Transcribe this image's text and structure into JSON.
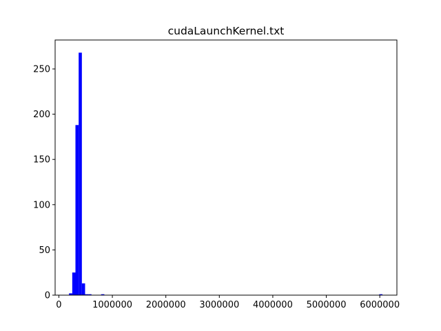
{
  "chart_data": {
    "type": "bar",
    "title": "cudaLaunchKernel.txt",
    "xlabel": "",
    "ylabel": "",
    "xlim": [
      -70000,
      6320000
    ],
    "ylim": [
      0,
      282
    ],
    "x_ticks": [
      {
        "value": 0,
        "label": "0"
      },
      {
        "value": 1000000,
        "label": "1000000"
      },
      {
        "value": 2000000,
        "label": "2000000"
      },
      {
        "value": 3000000,
        "label": "3000000"
      },
      {
        "value": 4000000,
        "label": "4000000"
      },
      {
        "value": 5000000,
        "label": "5000000"
      },
      {
        "value": 6000000,
        "label": "6000000"
      }
    ],
    "y_ticks": [
      {
        "value": 0,
        "label": "0"
      },
      {
        "value": 50,
        "label": "50"
      },
      {
        "value": 100,
        "label": "100"
      },
      {
        "value": 150,
        "label": "150"
      },
      {
        "value": 200,
        "label": "200"
      },
      {
        "value": 250,
        "label": "250"
      }
    ],
    "grid": false,
    "bar_color": "#0000ff",
    "bins": [
      {
        "x0": 190000,
        "x1": 250000,
        "count": 2
      },
      {
        "x0": 250000,
        "x1": 310000,
        "count": 25
      },
      {
        "x0": 310000,
        "x1": 370000,
        "count": 188
      },
      {
        "x0": 370000,
        "x1": 430000,
        "count": 268
      },
      {
        "x0": 430000,
        "x1": 490000,
        "count": 13
      },
      {
        "x0": 490000,
        "x1": 550000,
        "count": 1
      },
      {
        "x0": 550000,
        "x1": 610000,
        "count": 1
      },
      {
        "x0": 790000,
        "x1": 850000,
        "count": 1
      },
      {
        "x0": 5990000,
        "x1": 6050000,
        "count": 1
      }
    ]
  }
}
